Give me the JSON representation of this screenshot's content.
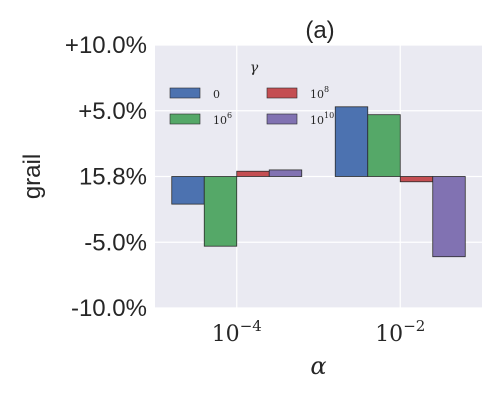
{
  "chart_data": {
    "type": "bar",
    "title": "(a)",
    "xlabel": "α",
    "ylabel": "grail",
    "categories": [
      "10^-4",
      "10^-2"
    ],
    "category_labels": {
      "base": "10",
      "exponents": [
        "−4",
        "−2"
      ]
    },
    "y_tick_labels": [
      "+10.0%",
      "+5.0%",
      "15.8%",
      "-5.0%",
      "-10.0%"
    ],
    "y_tick_values": [
      10,
      5,
      0,
      -5,
      -10
    ],
    "ylim": [
      -10,
      10
    ],
    "legend": {
      "title": "γ",
      "placement": "top-left",
      "entries": [
        {
          "label": "0",
          "base": "0",
          "exp": ""
        },
        {
          "label": "10^6",
          "base": "10",
          "exp": "6"
        },
        {
          "label": "10^8",
          "base": "10",
          "exp": "8"
        },
        {
          "label": "10^10",
          "base": "10",
          "exp": "10"
        }
      ]
    },
    "series": [
      {
        "values": [
          -2.1,
          5.3
        ],
        "color": "#4c72b0"
      },
      {
        "values": [
          -5.3,
          4.7
        ],
        "color": "#55a868"
      },
      {
        "values": [
          0.4,
          -0.4
        ],
        "color": "#c44e52"
      },
      {
        "values": [
          0.5,
          -6.1
        ],
        "color": "#8172b2"
      }
    ],
    "grid": true,
    "background": "#eaeaf2"
  }
}
